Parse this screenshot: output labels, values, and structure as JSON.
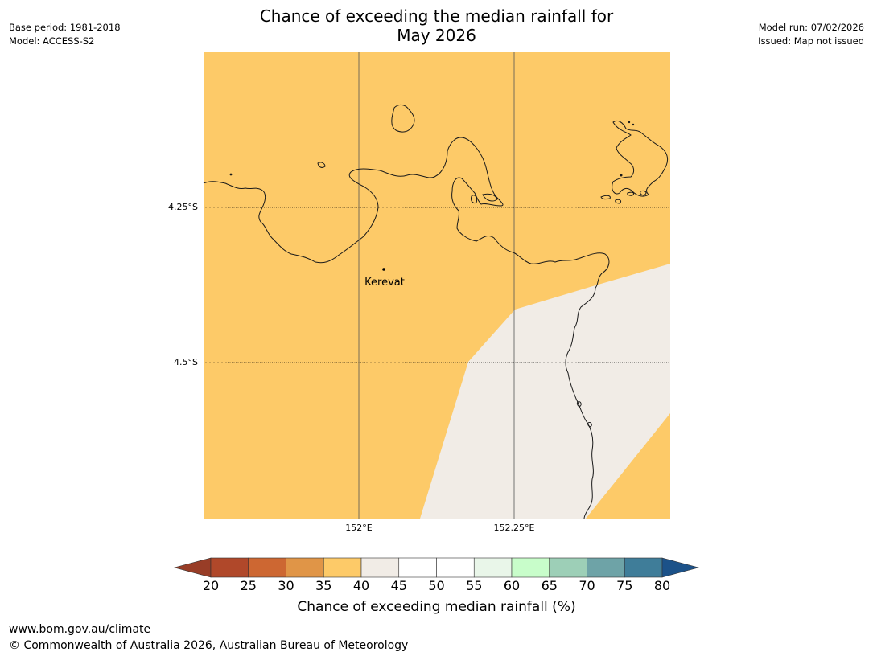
{
  "header": {
    "title_line1": "Chance of exceeding the median rainfall for",
    "title_line2": "May 2026",
    "base_period": "Base period: 1981-2018",
    "model": "Model: ACCESS-S2",
    "model_run": "Model run: 07/02/2026",
    "issued": "Issued: Map not issued"
  },
  "map": {
    "latitude_labels": [
      "4.25°S",
      "4.5°S"
    ],
    "longitude_labels": [
      "152°E",
      "152.25°E"
    ],
    "place": "Kerevat",
    "land_fill_color": "#fdca68",
    "neutral_fill_color": "#f1ece6"
  },
  "colorbar": {
    "title": "Chance of exceeding median rainfall (%)",
    "tick_labels": [
      "20",
      "25",
      "30",
      "35",
      "40",
      "45",
      "50",
      "55",
      "60",
      "65",
      "70",
      "75",
      "80"
    ],
    "colors": [
      "#983d27",
      "#b0482a",
      "#cd6732",
      "#e09547",
      "#fdca68",
      "#f1ece6",
      "#ffffff",
      "#ffffff",
      "#e9f6e9",
      "#c8fdca",
      "#9dcfb7",
      "#6ea3a7",
      "#3f7d99",
      "#1c5289"
    ]
  },
  "footer": {
    "website": "www.bom.gov.au/climate",
    "copyright": "© Commonwealth of Australia 2026, Australian Bureau of Meteorology"
  }
}
